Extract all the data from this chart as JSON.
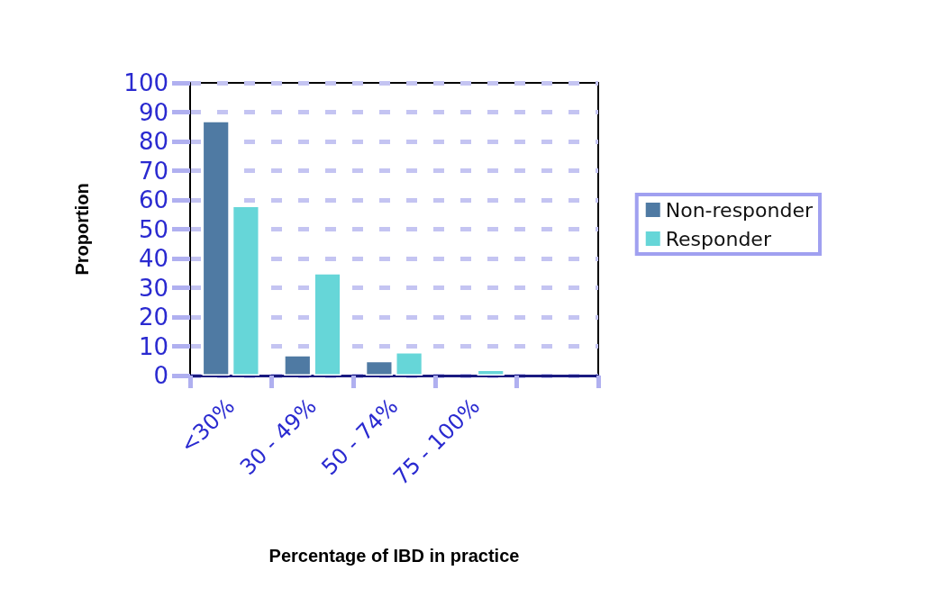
{
  "chart_data": {
    "type": "bar",
    "xlabel": "Percentage of IBD in practice",
    "ylabel": "Proportion",
    "categories": [
      "<30%",
      "30 - 49%",
      "50 - 74%",
      "75 - 100%",
      null
    ],
    "series": [
      {
        "name": "Non-responder",
        "color": "#4f7aa3",
        "values": [
          87,
          7,
          5,
          null,
          null
        ]
      },
      {
        "name": "Responder",
        "color": "#66d6d8",
        "values": [
          58,
          35,
          8,
          2,
          null
        ]
      }
    ],
    "ylim": [
      0,
      100
    ],
    "yticks": [
      0,
      10,
      20,
      30,
      40,
      50,
      60,
      70,
      80,
      90,
      100
    ],
    "grid": "y",
    "legend": "right"
  }
}
